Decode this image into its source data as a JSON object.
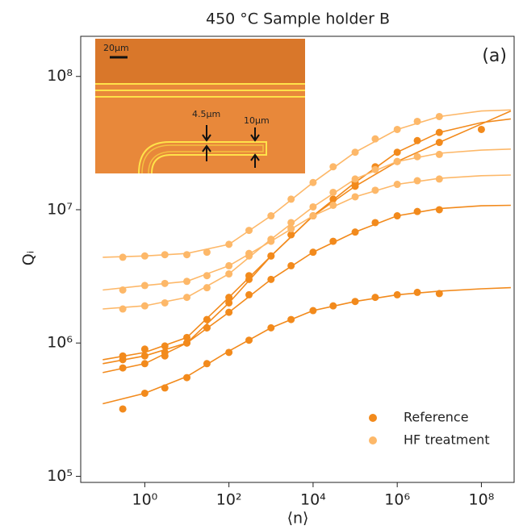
{
  "chart_data": {
    "type": "scatter",
    "title": "450 °C Sample holder B",
    "annotation": "(a)",
    "xlabel": "⟨n⟩",
    "ylabel": "Qᵢ",
    "xscale": "log",
    "yscale": "log",
    "xlim": [
      0.03,
      600000000
    ],
    "ylim": [
      90000,
      200000000
    ],
    "xticks": [
      {
        "value": 1,
        "label": "10⁰"
      },
      {
        "value": 100,
        "label": "10²"
      },
      {
        "value": 10000,
        "label": "10⁴"
      },
      {
        "value": 1000000,
        "label": "10⁶"
      },
      {
        "value": 100000000,
        "label": "10⁸"
      }
    ],
    "yticks": [
      {
        "value": 100000,
        "label": "10⁵"
      },
      {
        "value": 1000000,
        "label": "10⁶"
      },
      {
        "value": 10000000,
        "label": "10⁷"
      },
      {
        "value": 100000000,
        "label": "10⁸"
      }
    ],
    "legend": "lower right",
    "inset": {
      "scale_bar": "20μm",
      "gap_label": "4.5μm",
      "width_label": "10μm"
    },
    "fit_x": [
      0.1,
      1,
      10,
      100,
      1000,
      10000,
      100000,
      1000000,
      10000000,
      100000000,
      500000000
    ],
    "series": [
      {
        "name": "Reference",
        "color": "#f28a1c",
        "resonators": [
          {
            "x": [
              0.3,
              1,
              3,
              10,
              30,
              100,
              300,
              1000,
              3000,
              10000,
              30000,
              100000,
              300000,
              1000000,
              3000000,
              10000000
            ],
            "values": [
              320000,
              420000,
              460000,
              550000,
              700000,
              850000,
              1050000,
              1300000,
              1500000,
              1750000,
              1900000,
              2050000,
              2200000,
              2300000,
              2400000,
              2350000
            ],
            "fit": [
              350000,
              420000,
              560000,
              870000,
              1300000,
              1750000,
              2050000,
              2300000,
              2450000,
              2550000,
              2600000
            ]
          },
          {
            "x": [
              0.3,
              1,
              3,
              10,
              30,
              100,
              300,
              1000,
              3000,
              10000,
              30000,
              100000,
              300000,
              1000000,
              3000000,
              10000000
            ],
            "values": [
              750000,
              800000,
              850000,
              1000000,
              1300000,
              1700000,
              2300000,
              3000000,
              3800000,
              4800000,
              5800000,
              6800000,
              8000000,
              9000000,
              9700000,
              10000000
            ],
            "fit": [
              700000,
              800000,
              1000000,
              1700000,
              3000000,
              4800000,
              6800000,
              9000000,
              10200000,
              10700000,
              10800000
            ]
          },
          {
            "x": [
              0.3,
              1,
              3,
              10,
              30,
              100,
              300,
              1000,
              3000,
              10000,
              30000,
              100000,
              300000,
              1000000,
              3000000,
              10000000
            ],
            "values": [
              800000,
              900000,
              950000,
              1100000,
              1500000,
              2200000,
              3200000,
              4500000,
              6500000,
              9000000,
              12000000,
              16000000,
              21000000,
              27000000,
              33000000,
              38000000
            ],
            "fit": [
              750000,
              850000,
              1100000,
              2200000,
              4500000,
              9000000,
              16000000,
              27000000,
              38000000,
              45000000,
              48000000
            ]
          },
          {
            "x": [
              0.3,
              1,
              3,
              10,
              30,
              100,
              300,
              1000,
              3000,
              10000,
              100000,
              1000000,
              10000000,
              100000000
            ],
            "values": [
              650000,
              700000,
              800000,
              1000000,
              1300000,
              2000000,
              3000000,
              4500000,
              6500000,
              9000000,
              15000000,
              23000000,
              32000000,
              40000000
            ],
            "fit": [
              600000,
              700000,
              1000000,
              2000000,
              4500000,
              9000000,
              15000000,
              23000000,
              32000000,
              44000000,
              55000000
            ]
          }
        ]
      },
      {
        "name": "HF treatment",
        "color": "#fdb869",
        "resonators": [
          {
            "x": [
              0.3,
              1,
              3,
              10,
              30,
              100,
              300,
              1000,
              3000,
              10000,
              30000,
              100000,
              300000,
              1000000,
              3000000,
              10000000
            ],
            "values": [
              4400000,
              4500000,
              4600000,
              4600000,
              4800000,
              5500000,
              7000000,
              9000000,
              12000000,
              16000000,
              21000000,
              27000000,
              34000000,
              40000000,
              46000000,
              50000000
            ],
            "fit": [
              4400000,
              4500000,
              4700000,
              5500000,
              9000000,
              16000000,
              27000000,
              40000000,
              50000000,
              55000000,
              56000000
            ]
          },
          {
            "x": [
              0.3,
              1,
              3,
              10,
              30,
              100,
              300,
              1000,
              3000,
              10000,
              30000,
              100000,
              300000,
              1000000,
              3000000,
              10000000
            ],
            "values": [
              2500000,
              2700000,
              2800000,
              2900000,
              3200000,
              3800000,
              4700000,
              5800000,
              7200000,
              9000000,
              10800000,
              12500000,
              14000000,
              15500000,
              16500000,
              17000000
            ],
            "fit": [
              2500000,
              2700000,
              2900000,
              3800000,
              5800000,
              9000000,
              12500000,
              15500000,
              17200000,
              18000000,
              18200000
            ]
          },
          {
            "x": [
              0.3,
              1,
              3,
              10,
              30,
              100,
              300,
              1000,
              3000,
              10000,
              30000,
              100000,
              300000,
              1000000,
              3000000,
              10000000
            ],
            "values": [
              1800000,
              1900000,
              2000000,
              2200000,
              2600000,
              3300000,
              4500000,
              6000000,
              8000000,
              10500000,
              13500000,
              17000000,
              20000000,
              23000000,
              25000000,
              26000000
            ],
            "fit": [
              1800000,
              1900000,
              2200000,
              3300000,
              6000000,
              10500000,
              17000000,
              23000000,
              26500000,
              28000000,
              28500000
            ]
          }
        ]
      }
    ]
  }
}
